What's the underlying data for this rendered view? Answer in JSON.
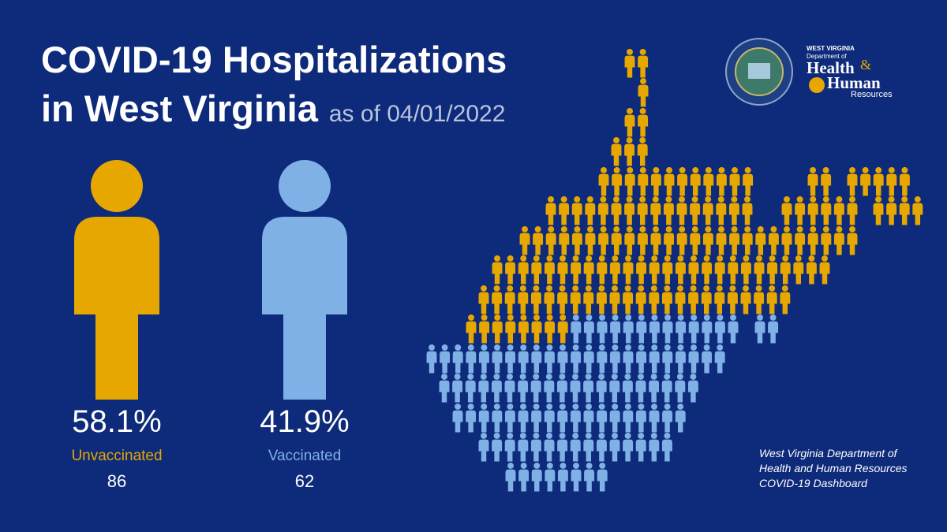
{
  "chart_data": {
    "type": "pictogram",
    "title": [
      "COVID-19 Hospitalizations",
      "in West Virginia"
    ],
    "subtitle": "as of 04/01/2022",
    "series": [
      {
        "name": "Unvaccinated",
        "color": "#e6a800",
        "percent": 58.1,
        "percent_label": "58.1%",
        "count": 86
      },
      {
        "name": "Vaccinated",
        "color": "#7fb0e6",
        "percent": 41.9,
        "percent_label": "41.9%",
        "count": 62
      }
    ],
    "source": [
      "West Virginia Department of",
      "Health and Human Resources",
      "COVID-19 Dashboard"
    ],
    "logo": {
      "state": "WEST VIRGINIA",
      "dept": "Department of",
      "health": "Health",
      "amp": "&",
      "human": "Human",
      "resources": "Resources"
    }
  }
}
